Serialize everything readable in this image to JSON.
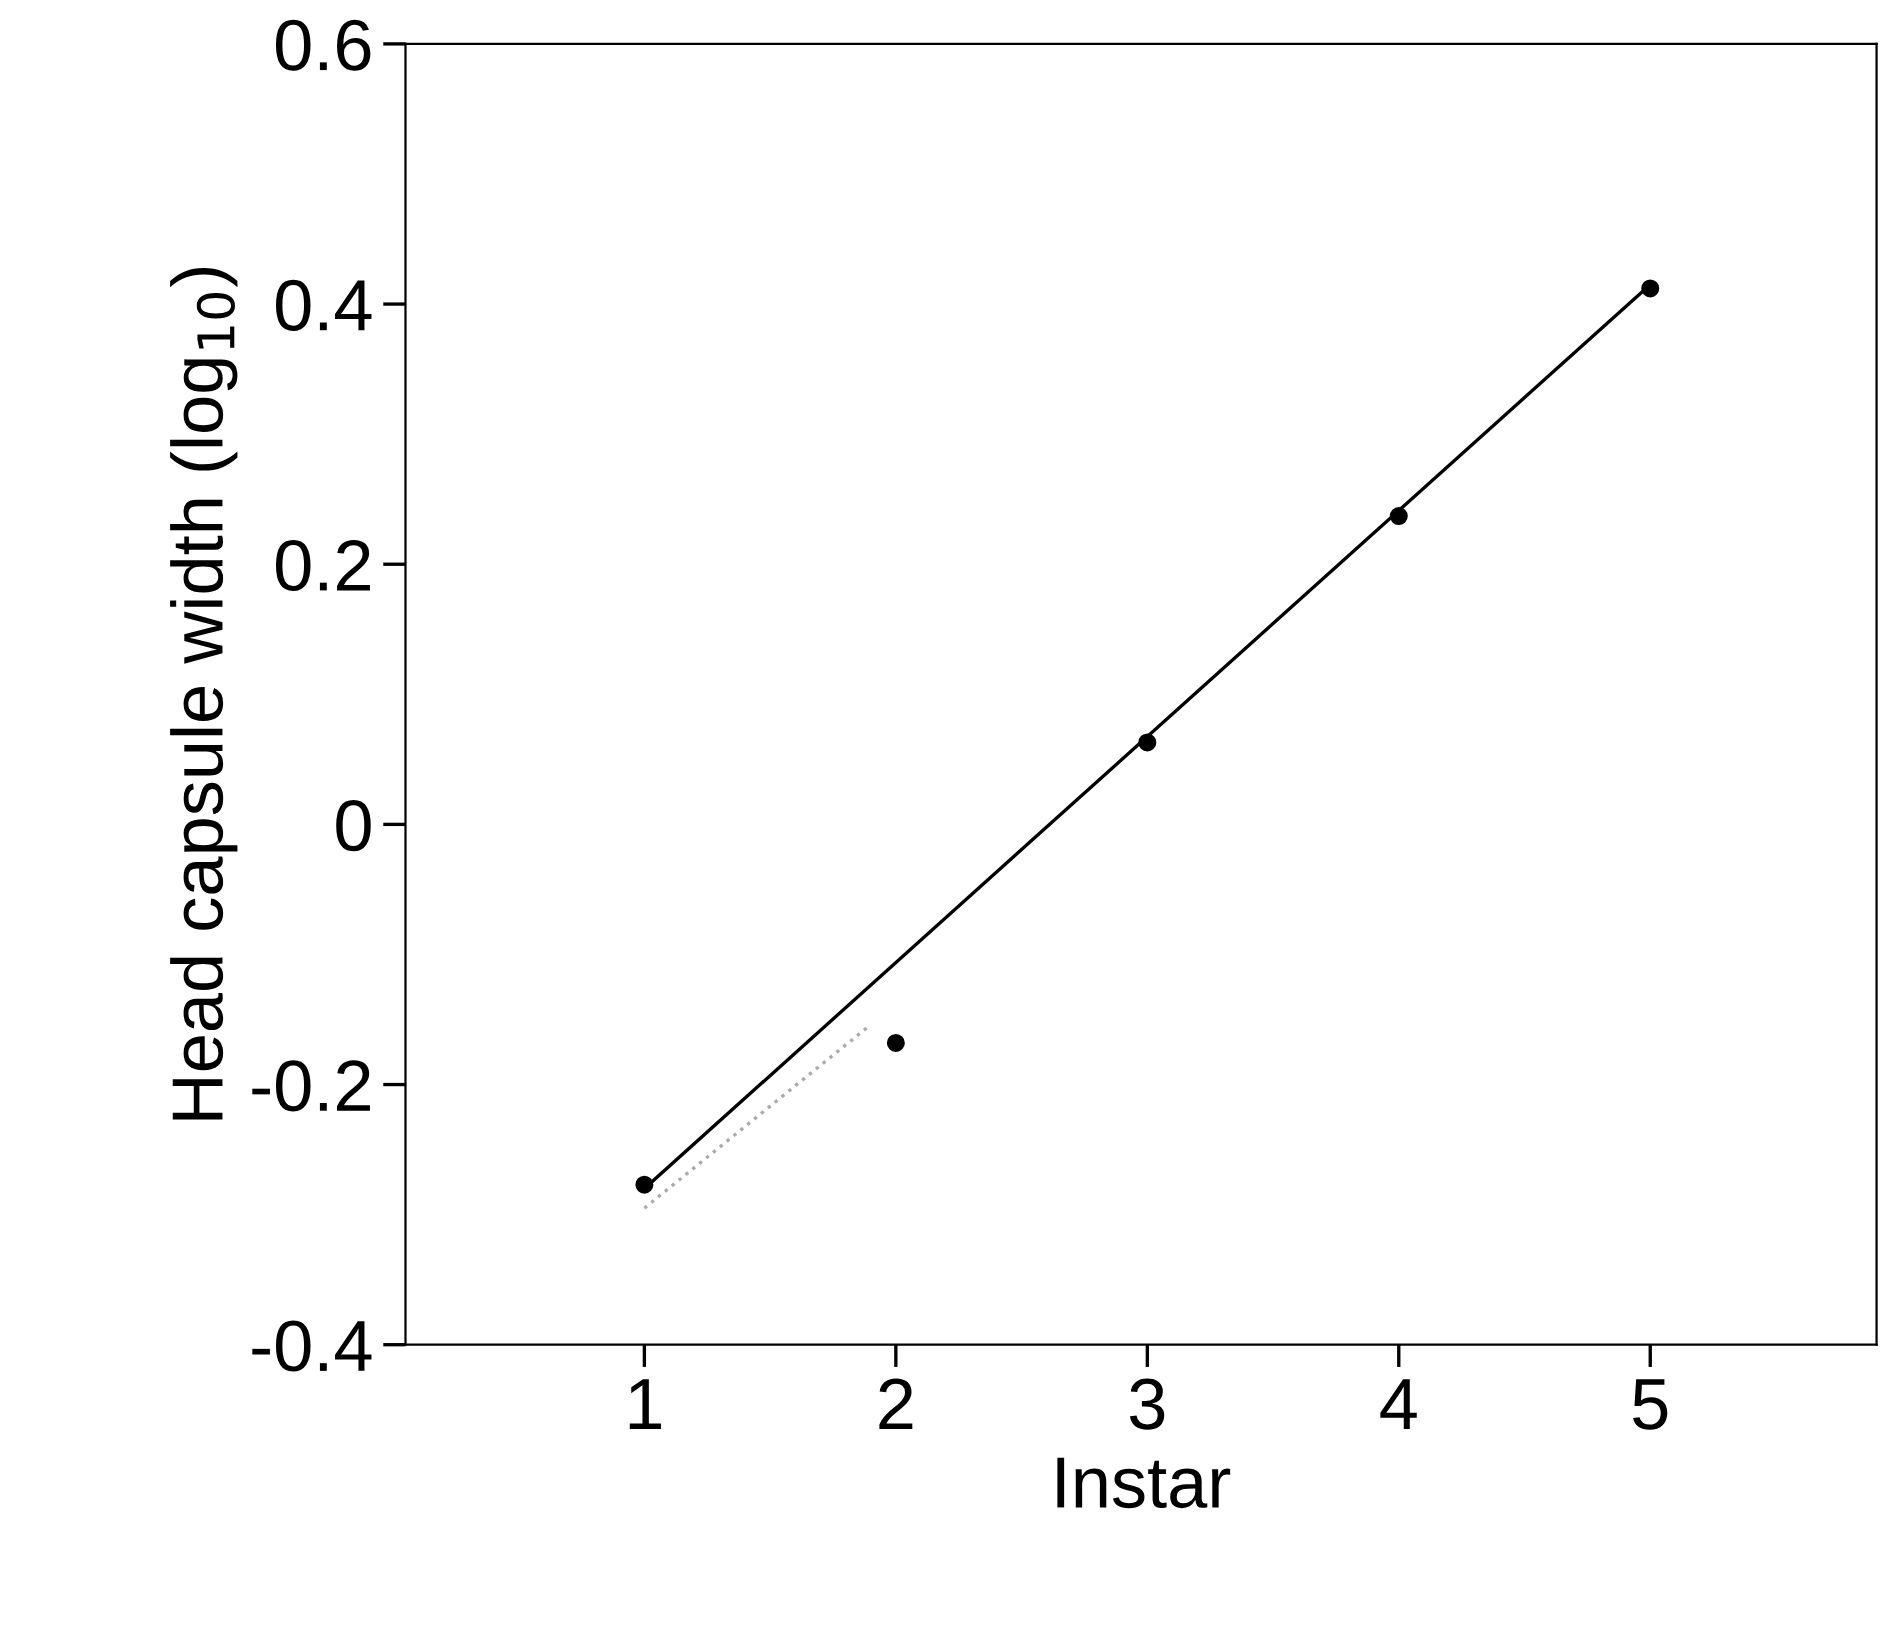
{
  "chart_data": {
    "type": "scatter",
    "xlabel": "Instar",
    "ylabel": "Head capsule width (log$_{10}$)",
    "x": [
      1,
      2,
      3,
      4,
      5
    ],
    "series": [
      {
        "color": "#000000",
        "marker": "circle",
        "values": [
          -0.277,
          -0.168,
          0.063,
          0.237,
          0.412
        ]
      },
      {
        "type": "line",
        "color": "#000000",
        "x": [
          1,
          5
        ],
        "values": [
          -0.28,
          0.415
        ],
        "line_style": "solid"
      },
      {
        "type": "line",
        "color": "#aaaaaa",
        "x": [
          1,
          1.9
        ],
        "values": [
          -0.295,
          -0.154
        ],
        "line_style": "dotted"
      }
    ],
    "xlim": [
      0.05,
      5.9
    ],
    "xticks": [
      1,
      2,
      3,
      4,
      5
    ],
    "ylim": [
      -0.4,
      0.6
    ],
    "yticks": [
      -0.4,
      -0.2,
      0,
      0.2,
      0.4,
      0.6
    ],
    "grid": false,
    "legend": false
  }
}
